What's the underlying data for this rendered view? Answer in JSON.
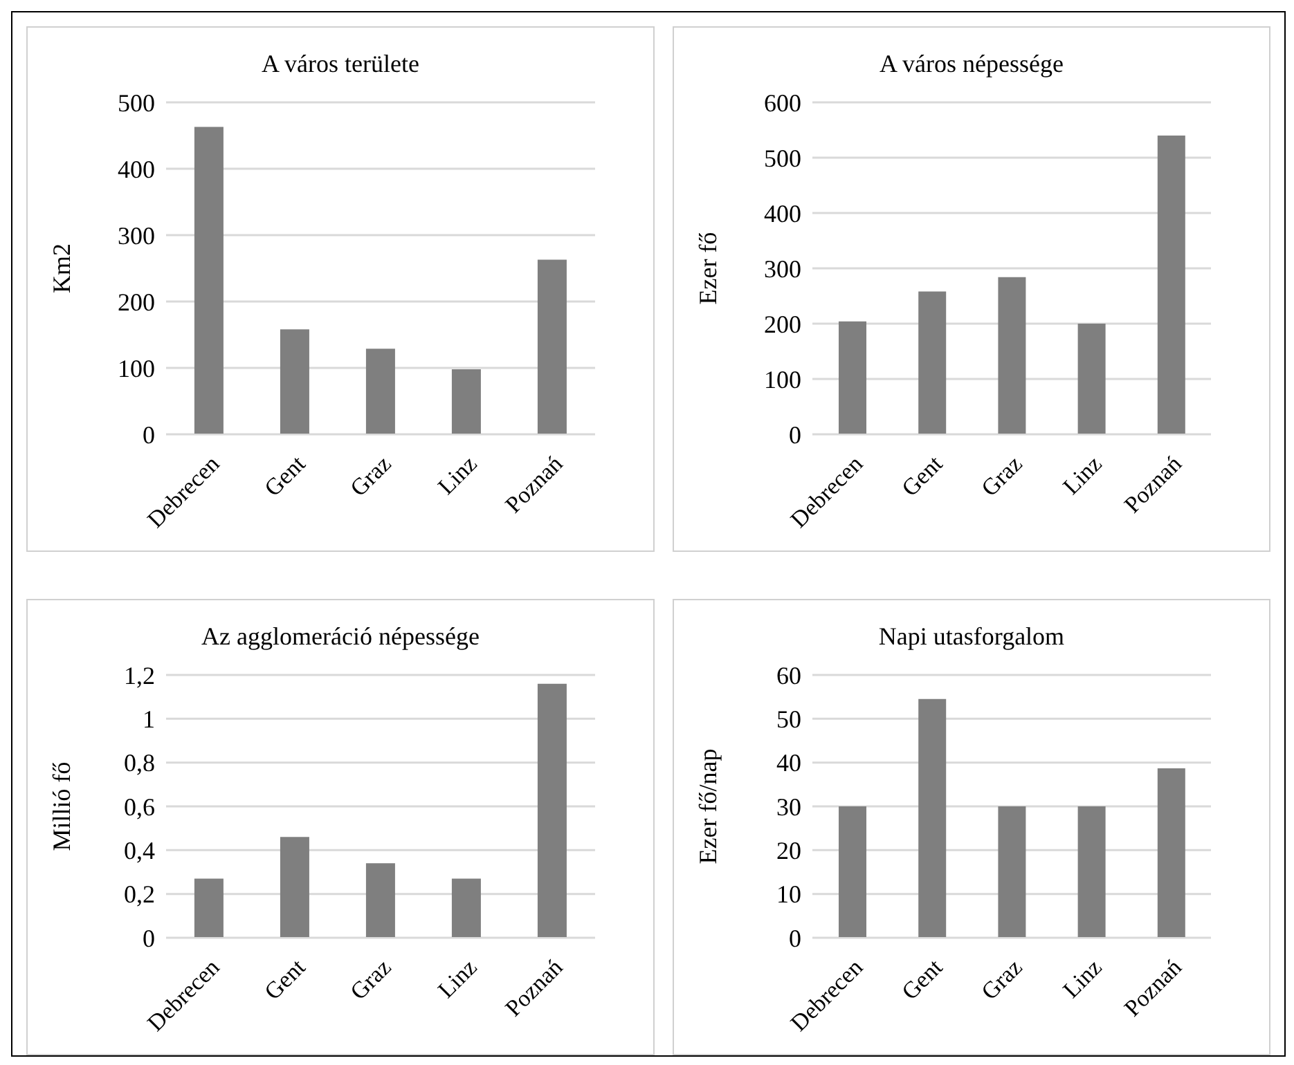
{
  "chart_data": [
    {
      "type": "bar",
      "title": "A város területe",
      "ylabel": "Km2",
      "categories": [
        "Debrecen",
        "Gent",
        "Graz",
        "Linz",
        "Poznań"
      ],
      "values": [
        463,
        158,
        129,
        98,
        263
      ],
      "color": "#7f7f7f",
      "ylim": [
        0,
        500
      ],
      "yticks": [
        0,
        100,
        200,
        300,
        400,
        500
      ],
      "grid": "y"
    },
    {
      "type": "bar",
      "title": "A város népessége",
      "ylabel": "Ezer fő",
      "categories": [
        "Debrecen",
        "Gent",
        "Graz",
        "Linz",
        "Poznań"
      ],
      "values": [
        204,
        258,
        284,
        200,
        540
      ],
      "color": "#7f7f7f",
      "ylim": [
        0,
        600
      ],
      "yticks": [
        0,
        100,
        200,
        300,
        400,
        500,
        600
      ],
      "grid": "y"
    },
    {
      "type": "bar",
      "title": "Az agglomeráció népessége",
      "ylabel": "Millió fő",
      "categories": [
        "Debrecen",
        "Gent",
        "Graz",
        "Linz",
        "Poznań"
      ],
      "values": [
        0.27,
        0.46,
        0.34,
        0.27,
        1.16
      ],
      "color": "#7f7f7f",
      "ylim": [
        0,
        1.2
      ],
      "yticks": [
        0,
        {
          "value": 0.2,
          "label": "0,2"
        },
        {
          "value": 0.4,
          "label": "0,4"
        },
        {
          "value": 0.6,
          "label": "0,6"
        },
        {
          "value": 0.8,
          "label": "0,8"
        },
        1,
        {
          "value": 1.2,
          "label": "1,2"
        }
      ],
      "grid": "y"
    },
    {
      "type": "bar",
      "title": "Napi utasforgalom",
      "ylabel": "Ezer fő/nap",
      "categories": [
        "Debrecen",
        "Gent",
        "Graz",
        "Linz",
        "Poznań"
      ],
      "values": [
        30,
        54.5,
        30,
        30,
        38.7
      ],
      "color": "#7f7f7f",
      "ylim": [
        0,
        60
      ],
      "yticks": [
        0,
        10,
        20,
        30,
        40,
        50,
        60
      ],
      "grid": "y"
    }
  ]
}
